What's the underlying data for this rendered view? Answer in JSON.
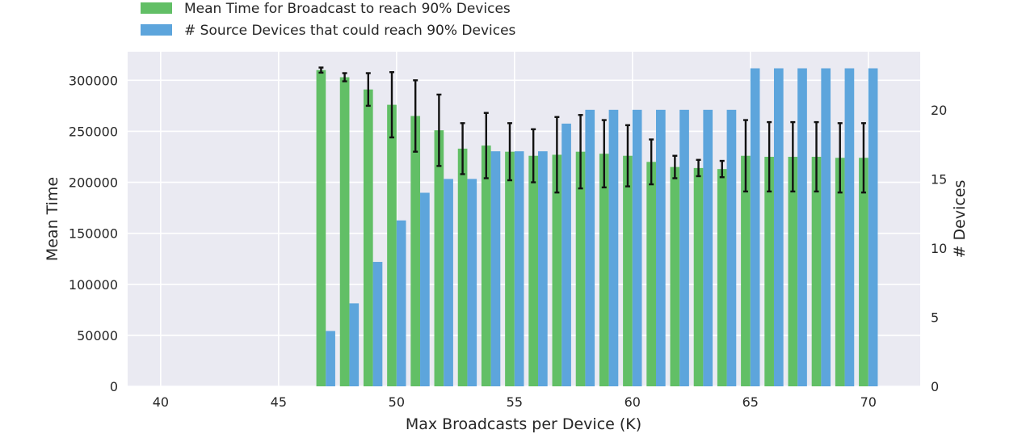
{
  "chart_data": {
    "type": "bar",
    "xlabel": "Max Broadcasts per Device (K)",
    "ylabel_left": "Mean Time",
    "ylabel_right": "# Devices",
    "x_ticks": [
      40,
      45,
      50,
      55,
      60,
      65,
      70
    ],
    "y_left_ticks": [
      0,
      50000,
      100000,
      150000,
      200000,
      250000,
      300000
    ],
    "y_right_ticks": [
      0,
      5,
      10,
      15,
      20
    ],
    "xlim": [
      38.6,
      72.2
    ],
    "y_left_lim": [
      0,
      328000
    ],
    "y_right_lim": [
      0,
      24.2
    ],
    "grid": true,
    "legend_position": "top-left, above plot",
    "x": [
      47,
      48,
      49,
      50,
      51,
      52,
      53,
      54,
      55,
      56,
      57,
      58,
      59,
      60,
      61,
      62,
      63,
      64,
      65,
      66,
      67,
      68,
      69,
      70
    ],
    "series": [
      {
        "name": "Mean Time for Broadcast to reach 90% Devices",
        "axis": "left",
        "color": "#62bf66",
        "values": [
          310000,
          303000,
          291000,
          276000,
          265000,
          251000,
          233000,
          236000,
          230000,
          226000,
          227000,
          230000,
          228000,
          226000,
          220000,
          215000,
          214000,
          213000,
          226000,
          225000,
          225000,
          225000,
          224000,
          224000
        ],
        "errors": [
          2500,
          4000,
          16000,
          32000,
          35000,
          35000,
          25000,
          32000,
          28000,
          26000,
          37000,
          36000,
          33000,
          30000,
          22000,
          11000,
          8000,
          8000,
          35000,
          34000,
          34000,
          34000,
          34000,
          34000
        ]
      },
      {
        "name": "# Source Devices that could reach 90% Devices",
        "axis": "right",
        "color": "#5da5dc",
        "values": [
          4,
          6,
          9,
          12,
          14,
          15,
          15,
          17,
          17,
          17,
          19,
          20,
          20,
          20,
          20,
          20,
          20,
          20,
          23,
          23,
          23,
          23,
          23,
          23
        ]
      }
    ]
  }
}
